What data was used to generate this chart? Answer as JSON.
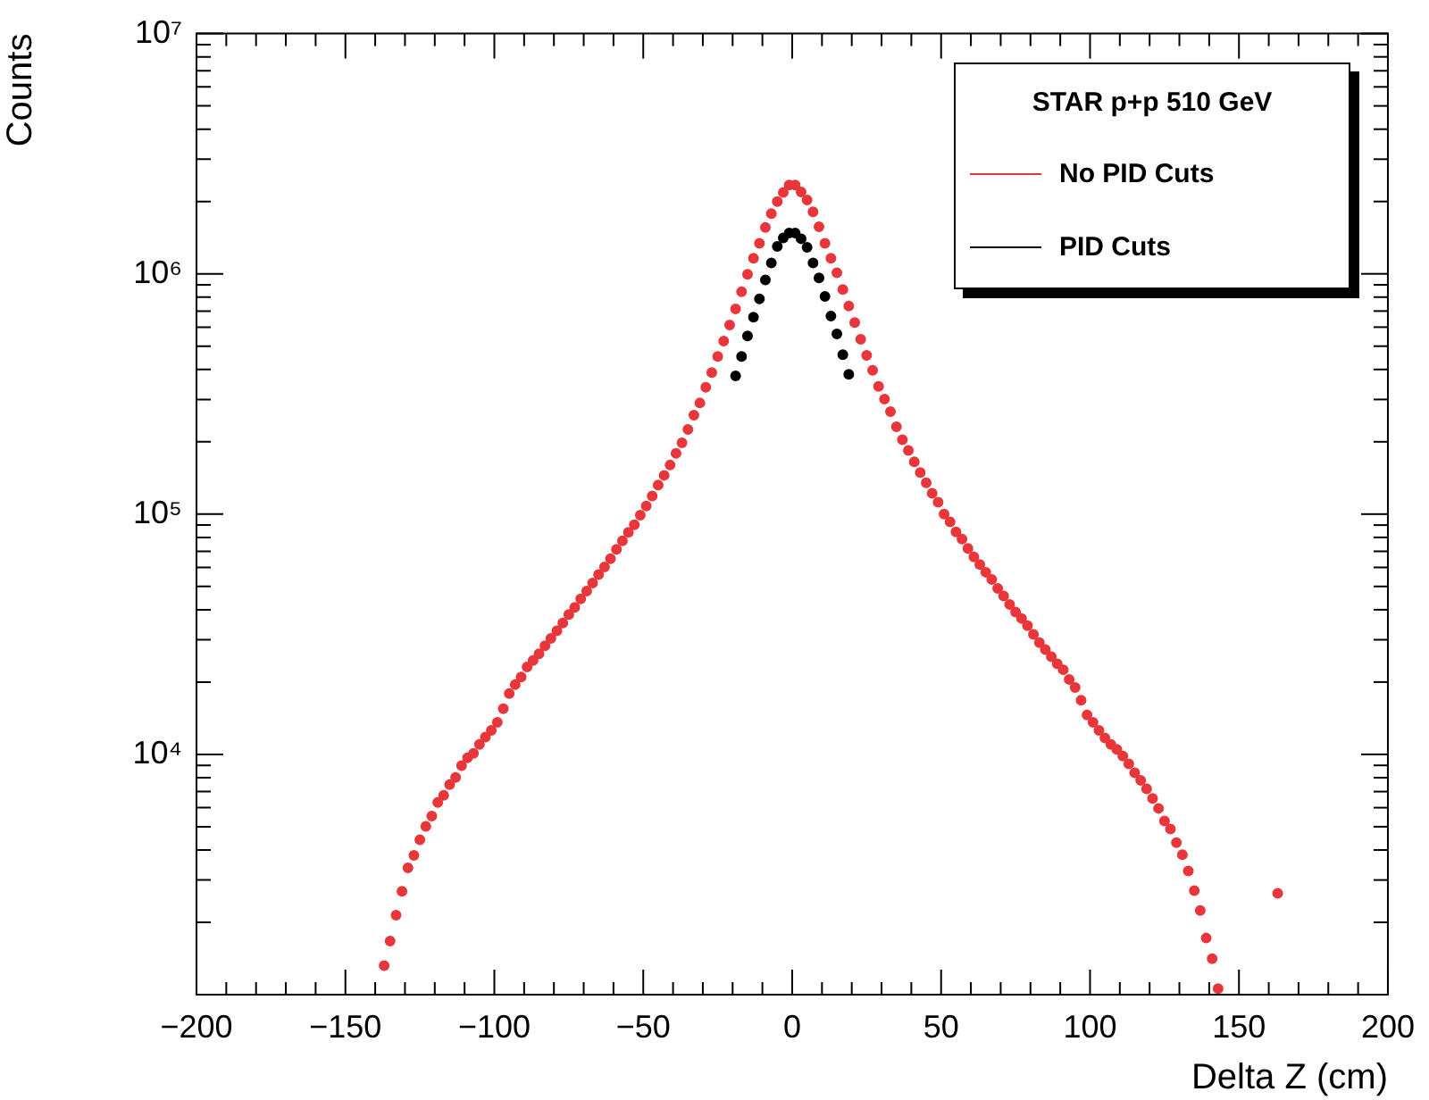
{
  "chart_data": {
    "type": "scatter",
    "xlabel": "Delta Z (cm)",
    "ylabel": "Counts",
    "legend_title": "STAR p+p 510 GeV",
    "legend": "top right",
    "marker": "circle",
    "log": "y",
    "xlim": [
      -200,
      200
    ],
    "ylim": [
      1000,
      10000000
    ],
    "xticks": [
      -200,
      {
        "value": -190,
        "label": null
      },
      {
        "value": -180,
        "label": null
      },
      {
        "value": -170,
        "label": null
      },
      {
        "value": -160,
        "label": null
      },
      -150,
      {
        "value": -140,
        "label": null
      },
      {
        "value": -130,
        "label": null
      },
      {
        "value": -120,
        "label": null
      },
      {
        "value": -110,
        "label": null
      },
      -100,
      {
        "value": -90,
        "label": null
      },
      {
        "value": -80,
        "label": null
      },
      {
        "value": -70,
        "label": null
      },
      {
        "value": -60,
        "label": null
      },
      -50,
      {
        "value": -40,
        "label": null
      },
      {
        "value": -30,
        "label": null
      },
      {
        "value": -20,
        "label": null
      },
      {
        "value": -10,
        "label": null
      },
      0,
      {
        "value": 10,
        "label": null
      },
      {
        "value": 20,
        "label": null
      },
      {
        "value": 30,
        "label": null
      },
      {
        "value": 40,
        "label": null
      },
      50,
      {
        "value": 60,
        "label": null
      },
      {
        "value": 70,
        "label": null
      },
      {
        "value": 80,
        "label": null
      },
      {
        "value": 90,
        "label": null
      },
      100,
      {
        "value": 110,
        "label": null
      },
      {
        "value": 120,
        "label": null
      },
      {
        "value": 130,
        "label": null
      },
      {
        "value": 140,
        "label": null
      },
      150,
      {
        "value": 160,
        "label": null
      },
      {
        "value": 170,
        "label": null
      },
      {
        "value": 180,
        "label": null
      },
      {
        "value": 190,
        "label": null
      },
      200
    ],
    "yticks": [
      {
        "value": 2000,
        "label": null
      },
      {
        "value": 3000,
        "label": null
      },
      {
        "value": 4000,
        "label": null
      },
      {
        "value": 5000,
        "label": null
      },
      {
        "value": 6000,
        "label": null
      },
      {
        "value": 7000,
        "label": null
      },
      {
        "value": 8000,
        "label": null
      },
      {
        "value": 9000,
        "label": null
      },
      {
        "value": 10000,
        "label": "10⁴"
      },
      {
        "value": 20000,
        "label": null
      },
      {
        "value": 30000,
        "label": null
      },
      {
        "value": 40000,
        "label": null
      },
      {
        "value": 50000,
        "label": null
      },
      {
        "value": 60000,
        "label": null
      },
      {
        "value": 70000,
        "label": null
      },
      {
        "value": 80000,
        "label": null
      },
      {
        "value": 90000,
        "label": null
      },
      {
        "value": 100000,
        "label": "10⁵"
      },
      {
        "value": 200000,
        "label": null
      },
      {
        "value": 300000,
        "label": null
      },
      {
        "value": 400000,
        "label": null
      },
      {
        "value": 500000,
        "label": null
      },
      {
        "value": 600000,
        "label": null
      },
      {
        "value": 700000,
        "label": null
      },
      {
        "value": 800000,
        "label": null
      },
      {
        "value": 900000,
        "label": null
      },
      {
        "value": 1000000,
        "label": "10⁶"
      },
      {
        "value": 2000000,
        "label": null
      },
      {
        "value": 3000000,
        "label": null
      },
      {
        "value": 4000000,
        "label": null
      },
      {
        "value": 5000000,
        "label": null
      },
      {
        "value": 6000000,
        "label": null
      },
      {
        "value": 7000000,
        "label": null
      },
      {
        "value": 8000000,
        "label": null
      },
      {
        "value": 9000000,
        "label": null
      },
      {
        "value": 10000000,
        "label": "10⁷"
      }
    ],
    "series": [
      {
        "name": "No PID Cuts",
        "color": "#e8363a",
        "x": [
          -137,
          -135,
          -133,
          -131,
          -129,
          -127,
          -125,
          -123,
          -121,
          -119,
          -117,
          -115,
          -113,
          -111,
          -109,
          -107,
          -105,
          -103,
          -101,
          -99,
          -97,
          -95,
          -93,
          -91,
          -89,
          -87,
          -85,
          -83,
          -81,
          -79,
          -77,
          -75,
          -73,
          -71,
          -69,
          -67,
          -65,
          -63,
          -61,
          -59,
          -57,
          -55,
          -53,
          -51,
          -49,
          -47,
          -45,
          -43,
          -41,
          -39,
          -37,
          -35,
          -33,
          -31,
          -29,
          -27,
          -25,
          -23,
          -21,
          -19,
          -17,
          -15,
          -13,
          -11,
          -9,
          -7,
          -5,
          -3,
          -1,
          1,
          3,
          5,
          7,
          9,
          11,
          13,
          15,
          17,
          19,
          21,
          23,
          25,
          27,
          29,
          31,
          33,
          35,
          37,
          39,
          41,
          43,
          45,
          47,
          49,
          51,
          53,
          55,
          57,
          59,
          61,
          63,
          65,
          67,
          69,
          71,
          73,
          75,
          77,
          79,
          81,
          83,
          85,
          87,
          89,
          91,
          93,
          95,
          97,
          99,
          101,
          103,
          105,
          107,
          109,
          111,
          113,
          115,
          117,
          119,
          121,
          123,
          125,
          127,
          129,
          131,
          133,
          135,
          137,
          139,
          141,
          143,
          163
        ],
        "values": [
          1320,
          1670,
          2140,
          2690,
          3370,
          3800,
          4410,
          5020,
          5540,
          6310,
          6760,
          7480,
          8020,
          8980,
          9680,
          10100,
          11000,
          11800,
          12600,
          13600,
          15500,
          17900,
          19500,
          21000,
          23100,
          24600,
          26200,
          28300,
          30400,
          32700,
          35200,
          38200,
          40900,
          44400,
          47800,
          51700,
          56000,
          60300,
          65200,
          71400,
          77400,
          83900,
          90200,
          98900,
          108000,
          119000,
          132000,
          145000,
          160000,
          179000,
          198000,
          225000,
          258000,
          290000,
          337000,
          388000,
          453000,
          525000,
          612000,
          715000,
          843000,
          995000,
          1160000,
          1340000,
          1560000,
          1780000,
          2000000,
          2180000,
          2340000,
          2340000,
          2190000,
          2030000,
          1810000,
          1570000,
          1340000,
          1160000,
          1010000,
          861000,
          735000,
          627000,
          534000,
          458000,
          397000,
          340000,
          301000,
          267000,
          231000,
          204000,
          184000,
          165000,
          149000,
          135000,
          122000,
          112000,
          100000,
          92900,
          84300,
          78700,
          71900,
          66400,
          61700,
          57300,
          53500,
          49100,
          45600,
          42100,
          39100,
          36800,
          34300,
          31600,
          29200,
          27300,
          25500,
          23800,
          22500,
          20500,
          19000,
          16800,
          14600,
          13600,
          12600,
          11700,
          11000,
          10500,
          9840,
          9140,
          8390,
          7800,
          7190,
          6560,
          5960,
          5280,
          4890,
          4290,
          3820,
          3270,
          2710,
          2240,
          1720,
          1410,
          1060,
          2640
        ]
      },
      {
        "name": "PID Cuts",
        "color": "#000000",
        "x": [
          -19,
          -17,
          -15,
          -13,
          -11,
          -9,
          -7,
          -5,
          -3,
          -1,
          1,
          3,
          5,
          7,
          9,
          11,
          13,
          15,
          17,
          19
        ],
        "values": [
          376000,
          453000,
          552000,
          660000,
          787000,
          944000,
          1110000,
          1300000,
          1410000,
          1480000,
          1480000,
          1400000,
          1290000,
          1110000,
          962000,
          805000,
          667000,
          562000,
          461000,
          382000
        ]
      }
    ]
  }
}
